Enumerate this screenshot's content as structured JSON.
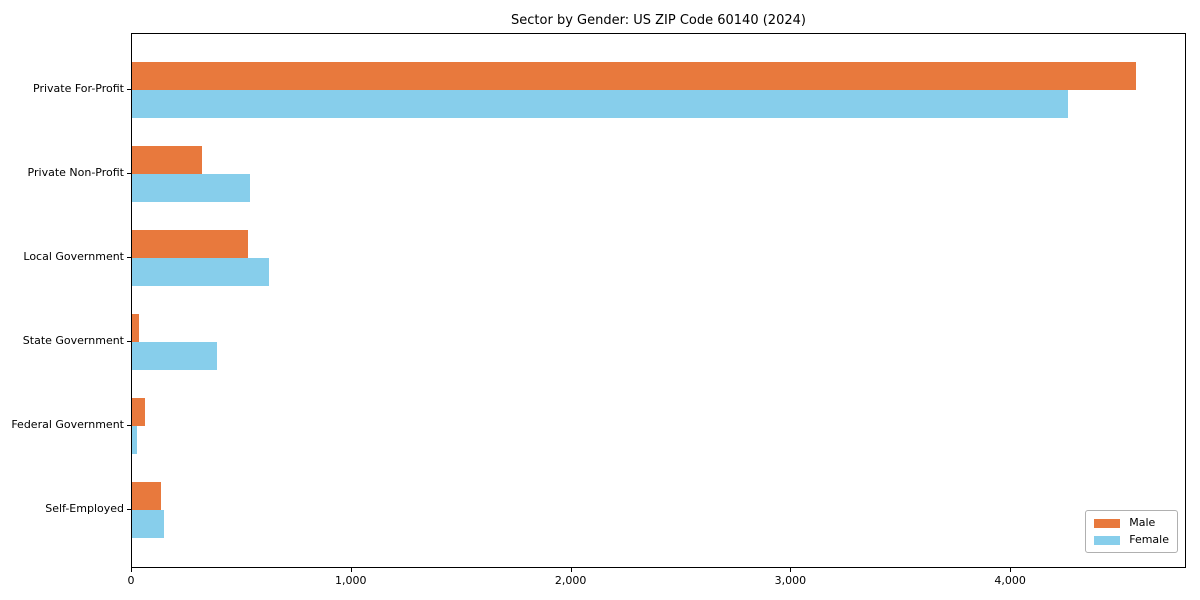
{
  "chart_data": {
    "type": "bar",
    "orientation": "horizontal",
    "title": "Sector by Gender: US ZIP Code 60140 (2024)",
    "categories": [
      "Private For-Profit",
      "Private Non-Profit",
      "Local Government",
      "State Government",
      "Federal Government",
      "Self-Employed"
    ],
    "series": [
      {
        "name": "Male",
        "color": "#e8793d",
        "values": [
          4570,
          320,
          530,
          30,
          60,
          130
        ]
      },
      {
        "name": "Female",
        "color": "#87ceeb",
        "values": [
          4260,
          535,
          625,
          385,
          25,
          145
        ]
      }
    ],
    "xlabel": "",
    "ylabel": "",
    "xlim": [
      0,
      4800
    ],
    "xticks": [
      0,
      1000,
      2000,
      3000,
      4000
    ],
    "xtick_labels": [
      "0",
      "1,000",
      "2,000",
      "3,000",
      "4,000"
    ],
    "grid": false,
    "background_color": "#ffffff",
    "axis_color": "#000000",
    "legend": {
      "position": "lower right"
    }
  }
}
